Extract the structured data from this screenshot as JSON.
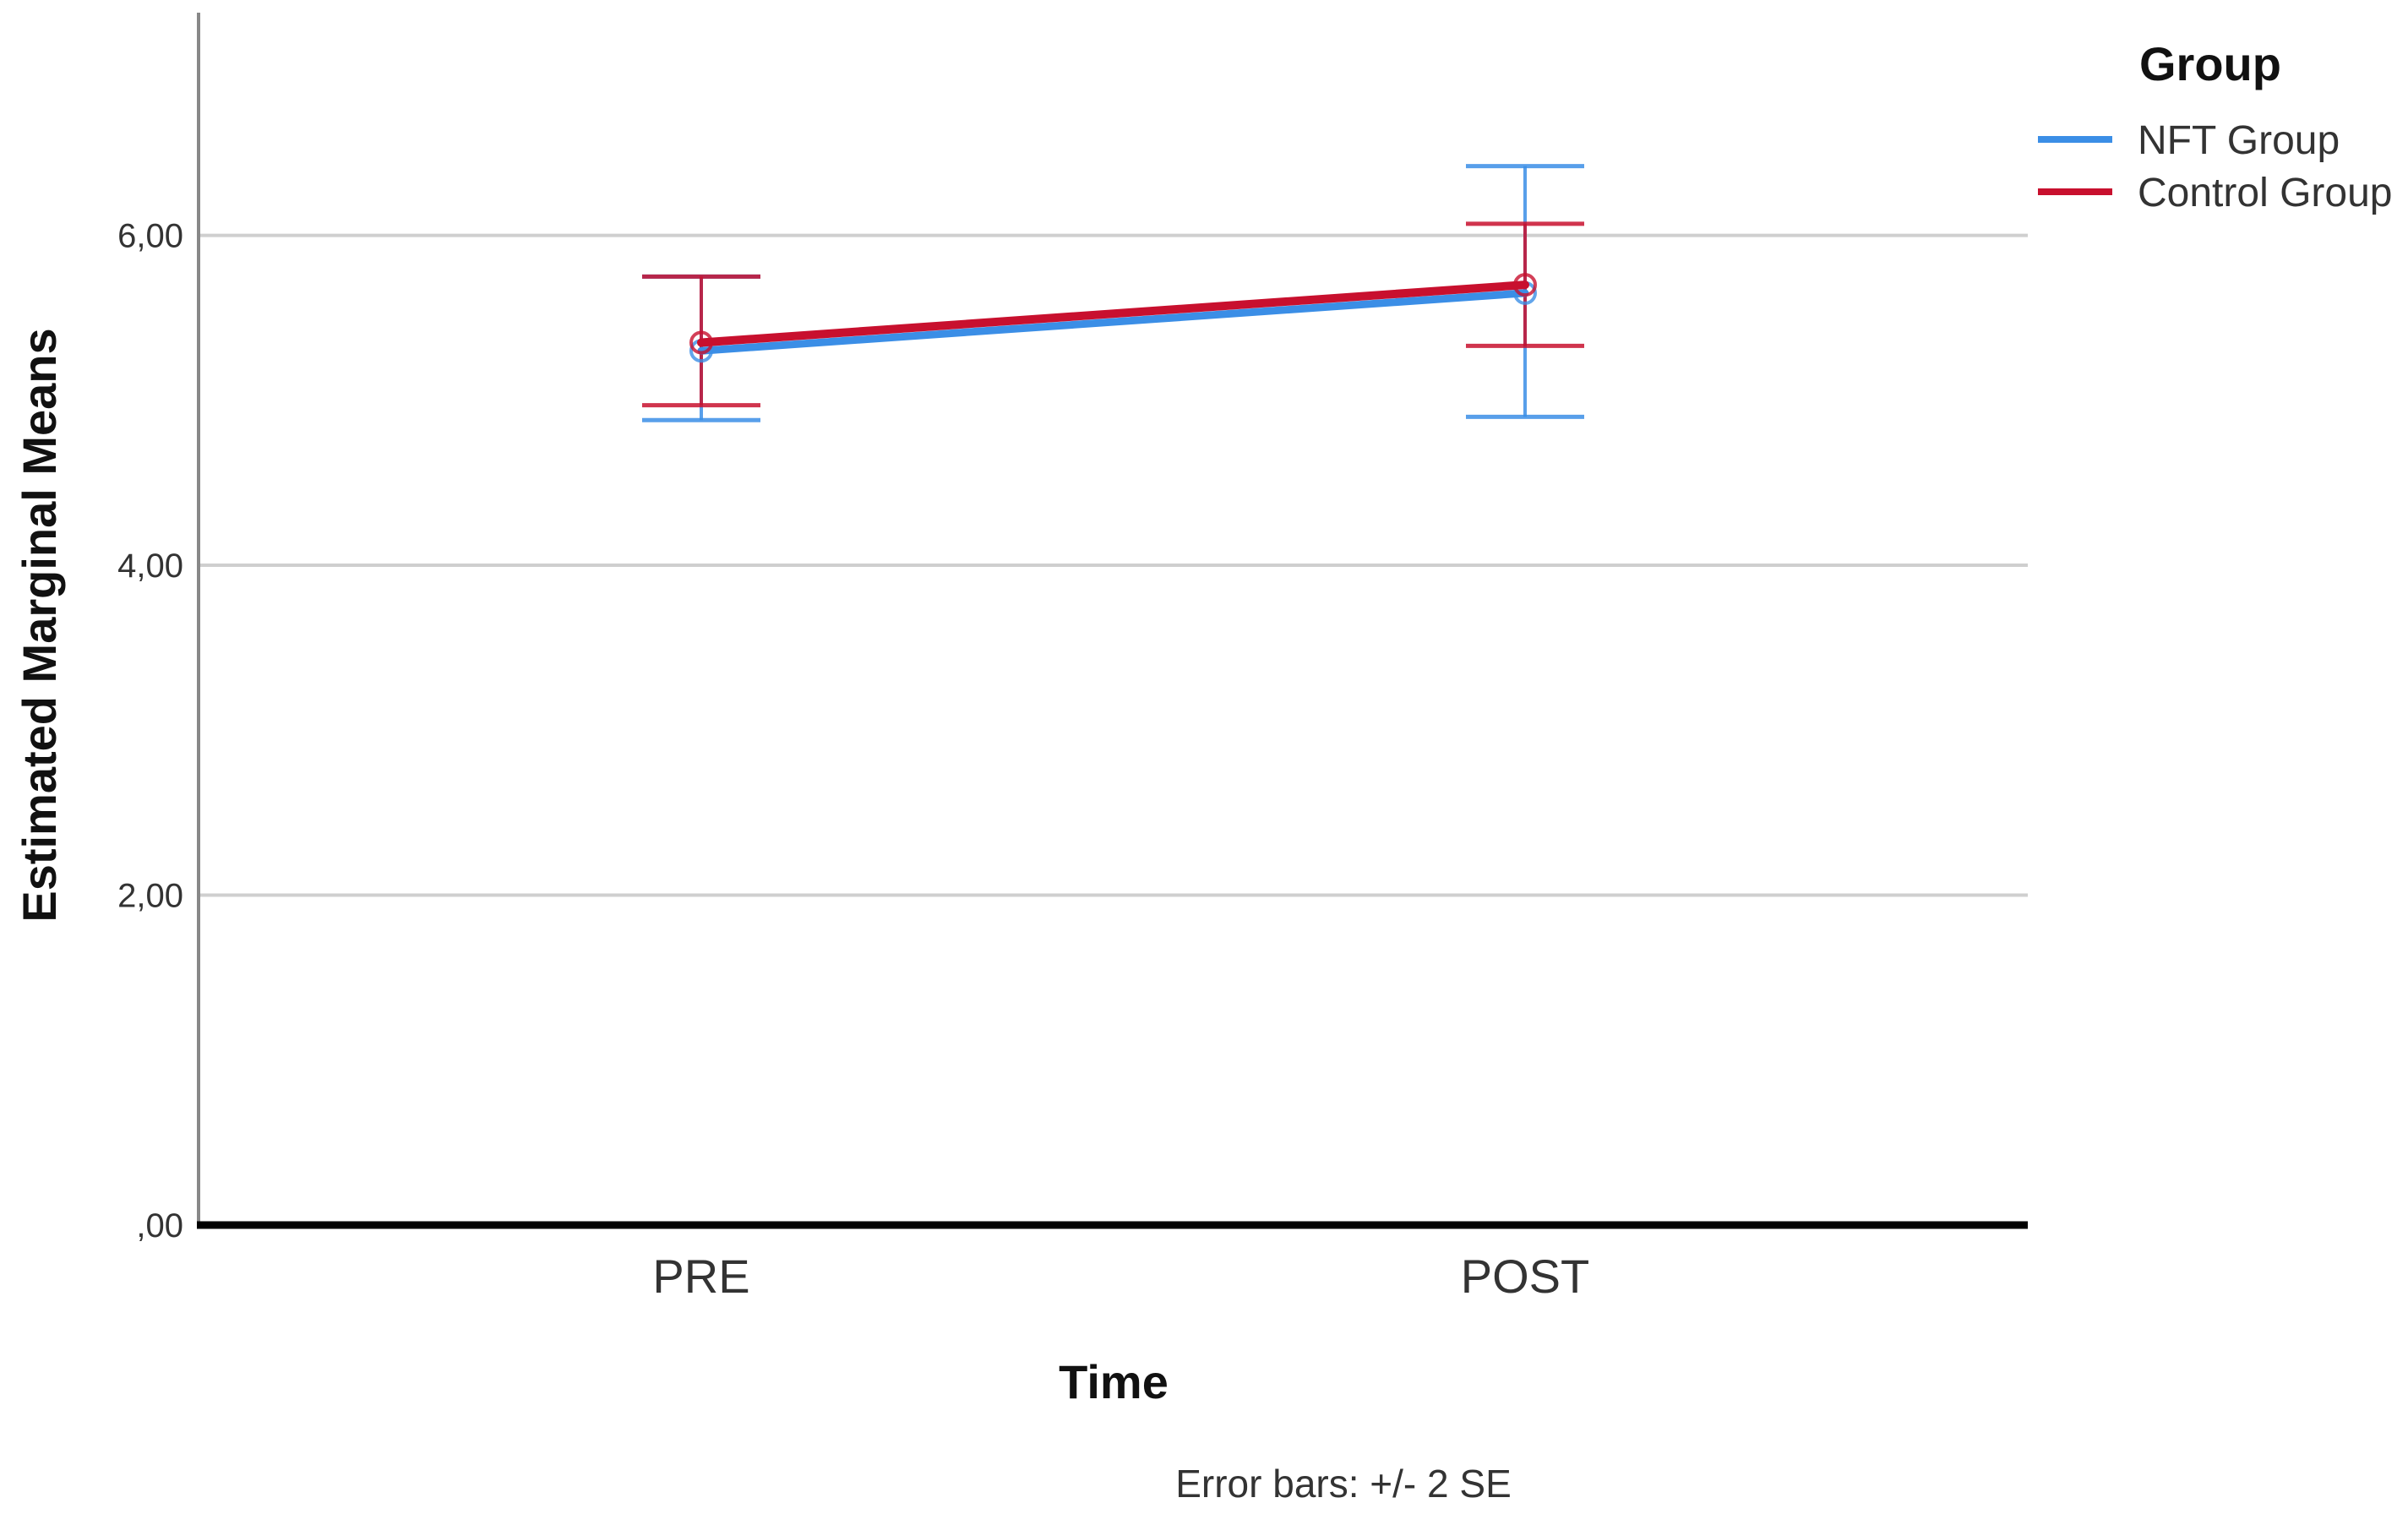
{
  "chart_data": {
    "type": "line",
    "title": "",
    "xlabel": "Time",
    "ylabel": "Estimated Marginal Means",
    "categories": [
      "PRE",
      "POST"
    ],
    "ylim": [
      0,
      7.35
    ],
    "yticks": [
      0,
      2,
      4,
      6
    ],
    "ytick_labels": [
      ",00",
      "2,00",
      "4,00",
      "6,00"
    ],
    "grid": true,
    "legend": {
      "title": "Group",
      "position": "top-right"
    },
    "series": [
      {
        "name": "NFT Group",
        "color": "#3b8ee6",
        "values": [
          5.3,
          5.65
        ],
        "error_low": [
          4.88,
          4.9
        ],
        "error_high": [
          5.75,
          6.42
        ]
      },
      {
        "name": "Control Group",
        "color": "#c8102e",
        "values": [
          5.35,
          5.7
        ],
        "error_low": [
          4.97,
          5.33
        ],
        "error_high": [
          5.75,
          6.07
        ]
      }
    ],
    "footnote": "Error bars: +/- 2 SE"
  }
}
